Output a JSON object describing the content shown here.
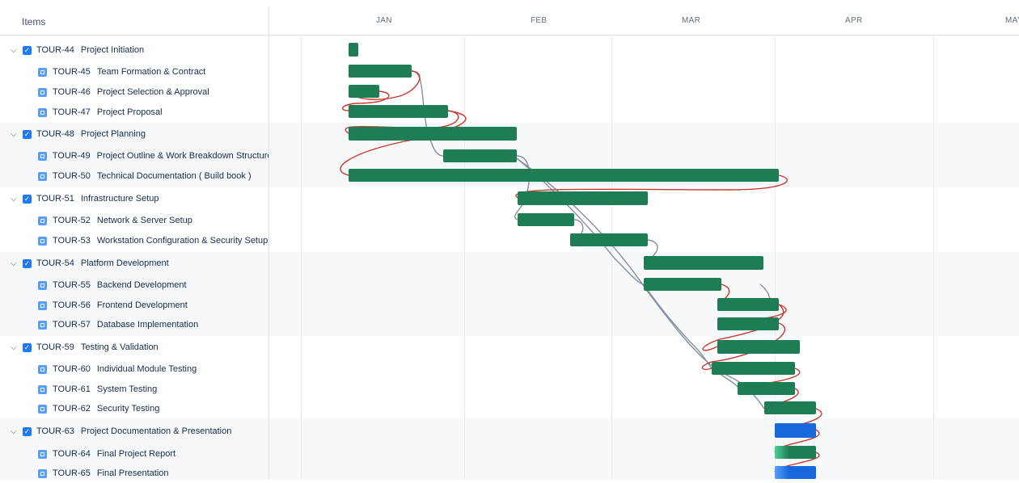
{
  "header": {
    "items_label": "Items",
    "months": [
      "JAN",
      "FEB",
      "MAR",
      "APR",
      "MAY"
    ]
  },
  "rows": [
    {
      "key": "TOUR-44",
      "title": "Project Initiation",
      "parent": true
    },
    {
      "key": "TOUR-45",
      "title": "Team Formation & Contract",
      "parent": false
    },
    {
      "key": "TOUR-46",
      "title": "Project Selection & Approval",
      "parent": false
    },
    {
      "key": "TOUR-47",
      "title": "Project Proposal",
      "parent": false
    },
    {
      "key": "TOUR-48",
      "title": "Project Planning",
      "parent": true
    },
    {
      "key": "TOUR-49",
      "title": "Project Outline & Work Breakdown Structure",
      "parent": false
    },
    {
      "key": "TOUR-50",
      "title": "Technical Documentation ( Build book )",
      "parent": false
    },
    {
      "key": "TOUR-51",
      "title": "Infrastructure Setup",
      "parent": true
    },
    {
      "key": "TOUR-52",
      "title": "Network & Server Setup",
      "parent": false
    },
    {
      "key": "TOUR-53",
      "title": "Workstation Configuration & Security Setup",
      "parent": false
    },
    {
      "key": "TOUR-54",
      "title": "Platform Development",
      "parent": true
    },
    {
      "key": "TOUR-55",
      "title": "Backend Development",
      "parent": false
    },
    {
      "key": "TOUR-56",
      "title": "Frontend Development",
      "parent": false
    },
    {
      "key": "TOUR-57",
      "title": "Database Implementation",
      "parent": false
    },
    {
      "key": "TOUR-59",
      "title": "Testing & Validation",
      "parent": true
    },
    {
      "key": "TOUR-60",
      "title": "Individual Module Testing",
      "parent": false
    },
    {
      "key": "TOUR-61",
      "title": "System Testing",
      "parent": false
    },
    {
      "key": "TOUR-62",
      "title": "Security Testing",
      "parent": false
    },
    {
      "key": "TOUR-63",
      "title": "Project Documentation & Presentation",
      "parent": true
    },
    {
      "key": "TOUR-64",
      "title": "Final Project Report",
      "parent": false
    },
    {
      "key": "TOUR-65",
      "title": "Final Presentation",
      "parent": false
    }
  ],
  "colors": {
    "bar_done": "#1f7d55",
    "bar_inprogress": "#1868db",
    "dep_ok": "#8590a2",
    "dep_conflict": "#c9372c"
  }
}
